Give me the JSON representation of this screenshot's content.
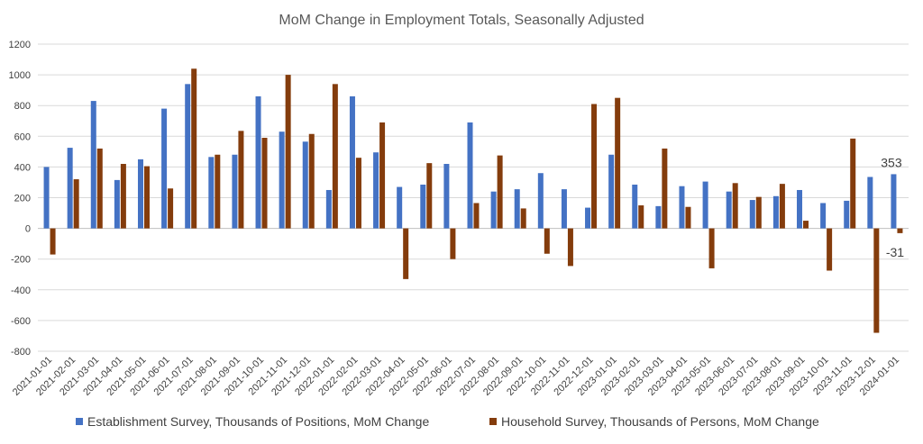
{
  "chart_data": {
    "type": "bar",
    "title": "MoM Change in Employment Totals, Seasonally Adjusted",
    "xlabel": "",
    "ylabel": "",
    "ylim": [
      -800,
      1200
    ],
    "yticks": [
      1200,
      1000,
      800,
      600,
      400,
      200,
      0,
      -200,
      -400,
      -600,
      -800
    ],
    "grid": true,
    "legend_position": "bottom",
    "categories": [
      "2021-01-01",
      "2021-02-01",
      "2021-03-01",
      "2021-04-01",
      "2021-05-01",
      "2021-06-01",
      "2021-07-01",
      "2021-08-01",
      "2021-09-01",
      "2021-10-01",
      "2021-11-01",
      "2021-12-01",
      "2022-01-01",
      "2022-02-01",
      "2022-03-01",
      "2022-04-01",
      "2022-05-01",
      "2022-06-01",
      "2022-07-01",
      "2022-08-01",
      "2022-09-01",
      "2022-10-01",
      "2022-11-01",
      "2022-12-01",
      "2023-01-01",
      "2023-02-01",
      "2023-03-01",
      "2023-04-01",
      "2023-05-01",
      "2023-06-01",
      "2023-07-01",
      "2023-08-01",
      "2023-09-01",
      "2023-10-01",
      "2023-11-01",
      "2023-12-01",
      "2024-01-01"
    ],
    "series": [
      {
        "name": "Establishment Survey, Thousands of Positions, MoM Change",
        "color": "#4472c4",
        "values": [
          400,
          525,
          830,
          315,
          450,
          780,
          940,
          465,
          480,
          860,
          630,
          565,
          250,
          860,
          495,
          270,
          285,
          420,
          690,
          240,
          255,
          360,
          255,
          135,
          480,
          285,
          145,
          275,
          305,
          240,
          185,
          210,
          250,
          165,
          180,
          335,
          353
        ]
      },
      {
        "name": "Household Survey, Thousands of Persons, MoM Change",
        "color": "#843c0c",
        "values": [
          -170,
          320,
          520,
          420,
          405,
          260,
          1040,
          480,
          635,
          590,
          1000,
          615,
          940,
          460,
          690,
          -330,
          425,
          -200,
          165,
          475,
          130,
          -165,
          -245,
          810,
          850,
          150,
          520,
          140,
          -260,
          295,
          205,
          290,
          50,
          -275,
          585,
          -680,
          -31
        ]
      }
    ],
    "annotations": [
      "353",
      "-31"
    ]
  }
}
